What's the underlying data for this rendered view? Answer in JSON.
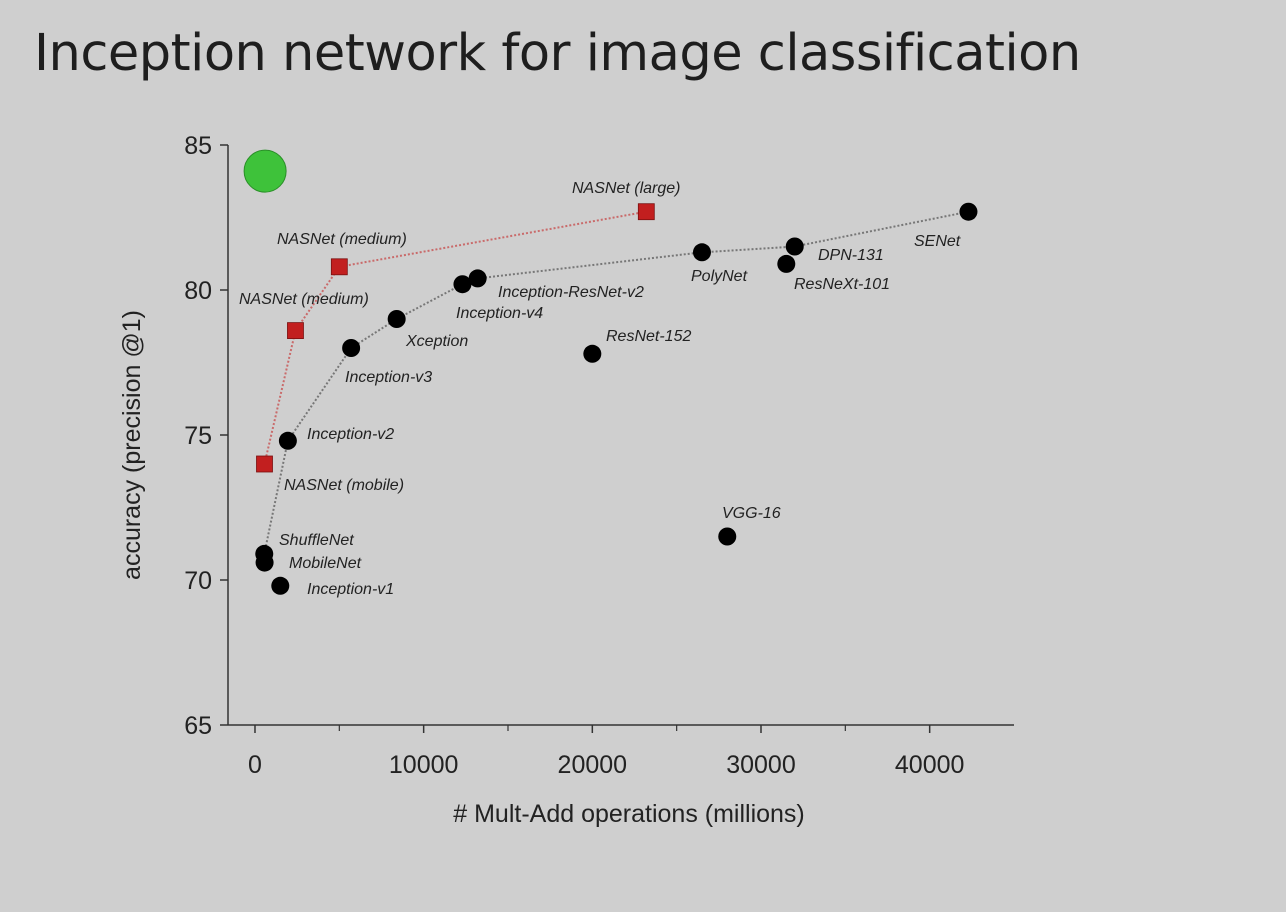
{
  "slide": {
    "title": "Inception network for image classification"
  },
  "chart_data": {
    "type": "scatter",
    "title": "",
    "xlabel": "# Mult-Add operations (millions)",
    "ylabel": "accuracy (precision @1)",
    "xlim": [
      -1600,
      45000
    ],
    "ylim": [
      65,
      85
    ],
    "xticks": [
      0,
      10000,
      20000,
      30000,
      40000
    ],
    "yticks": [
      65,
      70,
      75,
      80,
      85
    ],
    "grid": false,
    "colors": {
      "nasnet": "#c21f1f",
      "other": "#000000",
      "highlight": "#3ec23a",
      "nasnet_line": "#c96a6a",
      "other_line": "#777777"
    },
    "series": [
      {
        "marker": "square",
        "color": "#c21f1f",
        "connected": true,
        "points": [
          {
            "label": "NASNet (mobile)",
            "x": 564,
            "y": 74.0
          },
          {
            "label": "NASNet (medium)",
            "x": 2400,
            "y": 78.6
          },
          {
            "label": "NASNet (medium)",
            "x": 5000,
            "y": 80.8
          },
          {
            "label": "NASNet (large)",
            "x": 23200,
            "y": 82.7
          }
        ]
      },
      {
        "marker": "circle",
        "color": "#000000",
        "connected": true,
        "points": [
          {
            "label": "ShuffleNet",
            "x": 550,
            "y": 70.9
          },
          {
            "label": "Inception-v2",
            "x": 1950,
            "y": 74.8
          },
          {
            "label": "Inception-v3",
            "x": 5700,
            "y": 78.0
          },
          {
            "label": "Xception",
            "x": 8400,
            "y": 79.0
          },
          {
            "label": "Inception-v4",
            "x": 12300,
            "y": 80.2
          },
          {
            "label": "Inception-ResNet-v2",
            "x": 13200,
            "y": 80.4
          },
          {
            "label": "PolyNet",
            "x": 26500,
            "y": 81.3
          },
          {
            "label": "DPN-131",
            "x": 32000,
            "y": 81.5
          },
          {
            "label": "SENet",
            "x": 42300,
            "y": 82.7
          }
        ]
      },
      {
        "marker": "circle",
        "color": "#000000",
        "connected": false,
        "points": [
          {
            "label": "MobileNet",
            "x": 569,
            "y": 70.6
          },
          {
            "label": "Inception-v1",
            "x": 1500,
            "y": 69.8
          },
          {
            "label": "ResNet-152",
            "x": 20000,
            "y": 77.8
          },
          {
            "label": "ResNeXt-101",
            "x": 31500,
            "y": 80.9
          },
          {
            "label": "VGG-16",
            "x": 28000,
            "y": 71.5
          }
        ]
      },
      {
        "marker": "big-circle",
        "color": "#3ec23a",
        "connected": false,
        "points": [
          {
            "label": "",
            "x": 600,
            "y": 84.1
          }
        ]
      }
    ]
  }
}
